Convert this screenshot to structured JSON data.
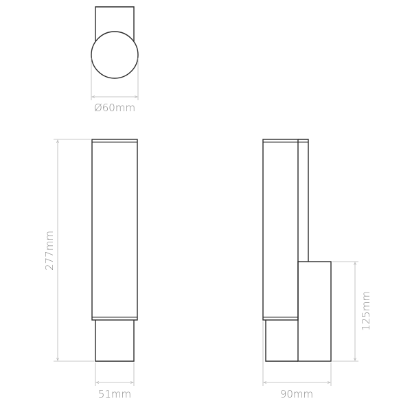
{
  "drawing": {
    "top_view": {
      "diameter_label": "Ø60mm"
    },
    "front_view": {
      "height_label": "277mm",
      "width_label": "51mm"
    },
    "side_view": {
      "depth_label": "90mm",
      "backplate_height_label": "125mm"
    }
  },
  "colors": {
    "outline": "#2a2a2a",
    "dimension": "#b5b5b5",
    "label": "#8a8a8a"
  }
}
